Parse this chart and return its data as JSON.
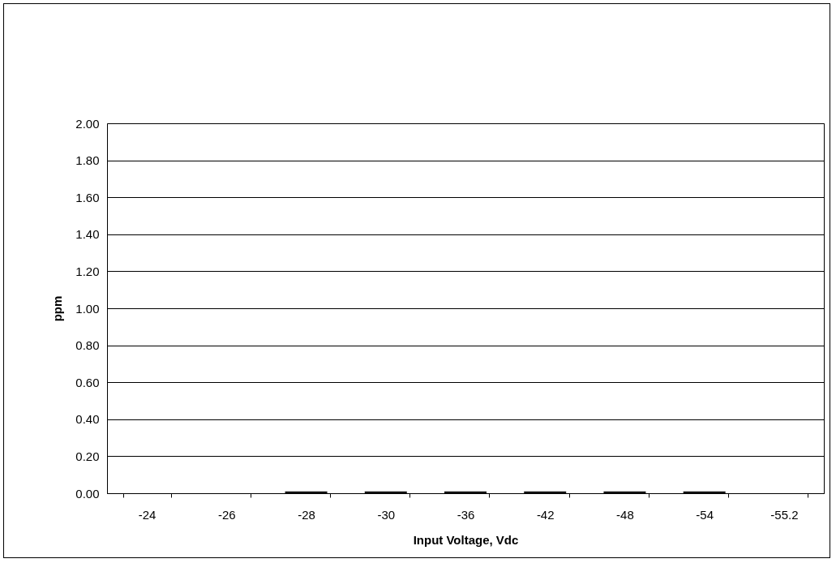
{
  "chart_data": {
    "type": "bar",
    "xlabel": "Input Voltage, Vdc",
    "ylabel": "ppm",
    "categories": [
      "-24",
      "-26",
      "-28",
      "-30",
      "-36",
      "-42",
      "-48",
      "-54",
      "-55.2"
    ],
    "values": [
      0,
      0,
      0.01,
      0.01,
      0.01,
      0.01,
      0.01,
      0.01,
      0
    ],
    "color": "#111111",
    "ylim": [
      0,
      2
    ],
    "yticks": [
      {
        "value": 0,
        "label": "0.00"
      },
      {
        "value": 0.2,
        "label": "0.20"
      },
      {
        "value": 0.4,
        "label": "0.40"
      },
      {
        "value": 0.6,
        "label": "0.60"
      },
      {
        "value": 0.8,
        "label": "0.80"
      },
      {
        "value": 1,
        "label": "1.00"
      },
      {
        "value": 1.2,
        "label": "1.20"
      },
      {
        "value": 1.4,
        "label": "1.40"
      },
      {
        "value": 1.6,
        "label": "1.60"
      },
      {
        "value": 1.8,
        "label": "1.80"
      },
      {
        "value": 2,
        "label": "2.00"
      }
    ],
    "grid": "y"
  }
}
